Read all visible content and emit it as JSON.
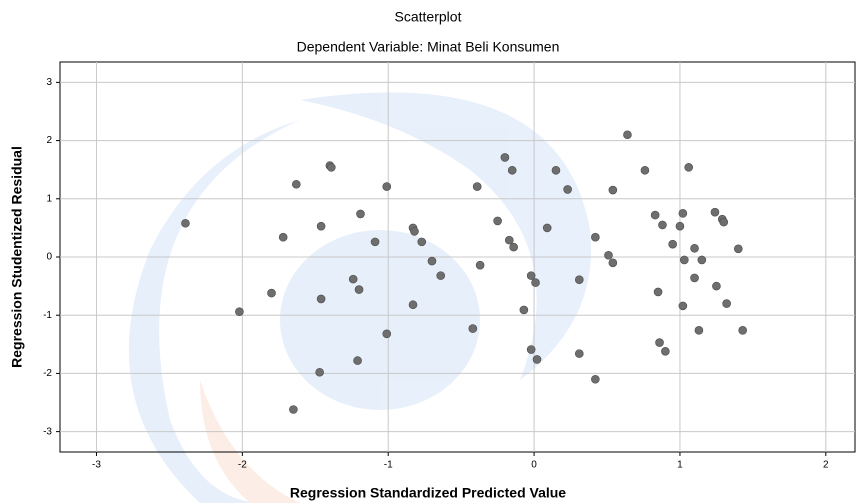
{
  "chart_data": {
    "type": "scatter",
    "title": "Scatterplot",
    "subtitle": "Dependent Variable: Minat Beli Konsumen",
    "x_label": "Regression Standardized Predicted Value",
    "y_label": "Regression Studentized Residual",
    "color": "#6e6e6e",
    "grid": true,
    "xlim": [
      -3.25,
      2.2
    ],
    "ylim": [
      -3.35,
      3.35
    ],
    "xticks": [
      -3,
      -2,
      -1,
      0,
      1,
      2
    ],
    "yticks": [
      -3,
      -2,
      -1,
      0,
      1,
      2,
      3
    ],
    "x": [
      -2.39,
      -1.63,
      -1.4,
      -1.39,
      -1.01,
      -1.72,
      -1.46,
      -1.19,
      -1.09,
      -0.83,
      -0.82,
      -0.77,
      -0.7,
      -0.64,
      -1.24,
      -1.2,
      -1.8,
      -2.02,
      -1.46,
      -0.83,
      -1.01,
      -1.21,
      -1.47,
      -1.65,
      -0.39,
      -0.2,
      -0.15,
      0.15,
      0.23,
      -0.25,
      -0.17,
      -0.14,
      0.09,
      -0.37,
      -0.02,
      0.01,
      -0.07,
      -0.42,
      -0.02,
      0.02,
      0.31,
      0.31,
      0.64,
      0.54,
      0.76,
      1.06,
      0.42,
      0.83,
      0.88,
      0.51,
      0.54,
      0.95,
      1.02,
      1.0,
      1.03,
      0.85,
      1.1,
      1.1,
      1.15,
      1.24,
      1.29,
      1.3,
      1.4,
      1.25,
      1.02,
      1.32,
      1.13,
      1.43,
      0.86,
      0.9,
      0.42
    ],
    "values": [
      0.58,
      1.25,
      1.57,
      1.54,
      1.21,
      0.34,
      0.53,
      0.74,
      0.26,
      0.5,
      0.44,
      0.26,
      -0.07,
      -0.32,
      -0.38,
      -0.56,
      -0.62,
      -0.94,
      -0.72,
      -0.82,
      -1.32,
      -1.78,
      -1.98,
      -2.62,
      1.21,
      1.71,
      1.49,
      1.49,
      1.16,
      0.62,
      0.29,
      0.17,
      0.5,
      -0.14,
      -0.32,
      -0.44,
      -0.91,
      -1.23,
      -1.59,
      -1.76,
      -0.39,
      -1.66,
      2.1,
      1.15,
      1.49,
      1.54,
      0.34,
      0.72,
      0.55,
      0.03,
      -0.1,
      0.22,
      0.75,
      0.53,
      -0.05,
      -0.6,
      -0.36,
      0.15,
      -0.05,
      0.77,
      0.65,
      0.6,
      0.14,
      -0.5,
      -0.84,
      -0.8,
      -1.26,
      -1.26,
      -1.47,
      -1.62,
      -2.1
    ]
  }
}
